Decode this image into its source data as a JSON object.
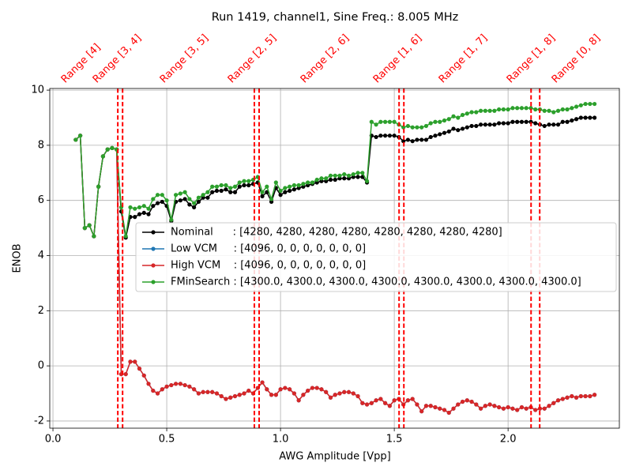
{
  "chart_data": {
    "type": "line",
    "title": "Run 1419, channel1, Sine Freq.: 8.005 MHz",
    "xlabel": "AWG Amplitude [Vpp]",
    "ylabel": "ENOB",
    "xlim": [
      -0.014,
      2.489
    ],
    "ylim": [
      -2.26,
      10.06
    ],
    "xticks": [
      {
        "value": 0,
        "label": "0.0"
      },
      0.5,
      {
        "value": 1,
        "label": "1.0"
      },
      1.5,
      {
        "value": 2,
        "label": "2.0"
      }
    ],
    "yticks": [
      -2,
      0,
      2,
      4,
      6,
      8,
      10
    ],
    "grid": true,
    "legend": "center right",
    "vlines": {
      "color": "#ff0000",
      "x": [
        0.285,
        0.306,
        0.885,
        0.906,
        1.521,
        1.542,
        2.101,
        2.139
      ]
    },
    "annotations": [
      "Range [4]",
      "Range [3, 4]",
      "Range [3, 5]",
      "Range [2, 5]",
      "Range [2, 6]",
      "Range [1, 6]",
      "Range [1, 7]",
      "Range [1, 8]",
      "Range [0, 8]"
    ],
    "x": [
      0.1,
      0.12,
      0.14,
      0.16,
      0.18,
      0.2,
      0.22,
      0.24,
      0.26,
      0.28,
      0.3,
      0.32,
      0.34,
      0.36,
      0.38,
      0.4,
      0.42,
      0.44,
      0.46,
      0.48,
      0.5,
      0.52,
      0.54,
      0.56,
      0.58,
      0.6,
      0.62,
      0.64,
      0.66,
      0.68,
      0.7,
      0.72,
      0.74,
      0.76,
      0.78,
      0.8,
      0.82,
      0.84,
      0.86,
      0.88,
      0.9,
      0.92,
      0.94,
      0.96,
      0.98,
      1.0,
      1.02,
      1.04,
      1.06,
      1.08,
      1.1,
      1.12,
      1.14,
      1.16,
      1.18,
      1.2,
      1.22,
      1.24,
      1.26,
      1.28,
      1.3,
      1.32,
      1.34,
      1.36,
      1.38,
      1.4,
      1.42,
      1.44,
      1.46,
      1.48,
      1.5,
      1.52,
      1.54,
      1.56,
      1.58,
      1.6,
      1.62,
      1.64,
      1.66,
      1.68,
      1.7,
      1.72,
      1.74,
      1.76,
      1.78,
      1.8,
      1.82,
      1.84,
      1.86,
      1.88,
      1.9,
      1.92,
      1.94,
      1.96,
      1.98,
      2.0,
      2.02,
      2.04,
      2.06,
      2.08,
      2.1,
      2.12,
      2.14,
      2.16,
      2.18,
      2.2,
      2.22,
      2.24,
      2.26,
      2.28,
      2.3,
      2.32,
      2.34,
      2.36,
      2.38
    ],
    "series": [
      {
        "name": "Nominal      : [4280, 4280, 4280, 4280, 4280, 4280, 4280, 4280]",
        "color": "#000000",
        "values": [
          8.2,
          8.35,
          5.0,
          5.1,
          4.7,
          6.5,
          7.6,
          7.85,
          7.9,
          7.85,
          5.6,
          4.65,
          5.4,
          5.4,
          5.5,
          5.55,
          5.5,
          5.8,
          5.9,
          5.95,
          5.8,
          5.25,
          5.95,
          6.0,
          6.05,
          5.85,
          5.75,
          5.95,
          6.1,
          6.1,
          6.3,
          6.35,
          6.35,
          6.4,
          6.3,
          6.3,
          6.5,
          6.55,
          6.55,
          6.6,
          6.65,
          6.15,
          6.3,
          5.95,
          6.45,
          6.2,
          6.3,
          6.35,
          6.4,
          6.45,
          6.5,
          6.55,
          6.6,
          6.65,
          6.7,
          6.7,
          6.75,
          6.75,
          6.8,
          6.8,
          6.8,
          6.85,
          6.85,
          6.85,
          6.65,
          8.35,
          8.3,
          8.35,
          8.35,
          8.35,
          8.35,
          8.3,
          8.15,
          8.2,
          8.15,
          8.2,
          8.2,
          8.2,
          8.3,
          8.35,
          8.4,
          8.45,
          8.5,
          8.6,
          8.55,
          8.6,
          8.65,
          8.7,
          8.7,
          8.75,
          8.75,
          8.75,
          8.75,
          8.8,
          8.8,
          8.8,
          8.85,
          8.85,
          8.85,
          8.85,
          8.85,
          8.8,
          8.75,
          8.7,
          8.75,
          8.75,
          8.75,
          8.85,
          8.85,
          8.9,
          8.95,
          9.0,
          9.0,
          9.0,
          9.0
        ]
      },
      {
        "name": "Low VCM     : [4096, 0, 0, 0, 0, 0, 0, 0]",
        "color": "#1f77b4",
        "values": [
          8.2,
          8.35,
          5.0,
          5.1,
          4.7,
          6.5,
          7.6,
          7.85,
          7.9,
          7.85,
          -0.3,
          -0.3,
          0.15,
          0.15,
          -0.1,
          -0.35,
          -0.65,
          -0.9,
          -1.0,
          -0.85,
          -0.75,
          -0.7,
          -0.65,
          -0.65,
          -0.7,
          -0.75,
          -0.85,
          -1.0,
          -0.95,
          -0.95,
          -0.95,
          -1.0,
          -1.1,
          -1.2,
          -1.15,
          -1.1,
          -1.05,
          -1.0,
          -0.9,
          -1.0,
          -0.8,
          -0.6,
          -0.85,
          -1.05,
          -1.05,
          -0.85,
          -0.8,
          -0.85,
          -1.0,
          -1.25,
          -1.05,
          -0.9,
          -0.8,
          -0.8,
          -0.85,
          -0.95,
          -1.15,
          -1.05,
          -1.0,
          -0.95,
          -0.95,
          -1.0,
          -1.1,
          -1.35,
          -1.4,
          -1.35,
          -1.25,
          -1.2,
          -1.35,
          -1.45,
          -1.25,
          -1.2,
          -1.4,
          -1.25,
          -1.2,
          -1.4,
          -1.65,
          -1.45,
          -1.45,
          -1.5,
          -1.55,
          -1.6,
          -1.7,
          -1.55,
          -1.4,
          -1.3,
          -1.25,
          -1.3,
          -1.4,
          -1.55,
          -1.45,
          -1.4,
          -1.45,
          -1.5,
          -1.55,
          -1.5,
          -1.55,
          -1.6,
          -1.5,
          -1.55,
          -1.5,
          -1.6,
          -1.55,
          -1.55,
          -1.45,
          -1.35,
          -1.25,
          -1.2,
          -1.15,
          -1.1,
          -1.15,
          -1.1,
          -1.1,
          -1.1,
          -1.05
        ]
      },
      {
        "name": "High VCM    : [4096, 0, 0, 0, 0, 0, 0, 0]",
        "color": "#d62728",
        "values": [
          8.2,
          8.35,
          5.0,
          5.1,
          4.7,
          6.5,
          7.6,
          7.85,
          7.9,
          7.85,
          -0.3,
          -0.3,
          0.15,
          0.15,
          -0.1,
          -0.35,
          -0.65,
          -0.9,
          -1.0,
          -0.85,
          -0.75,
          -0.7,
          -0.65,
          -0.65,
          -0.7,
          -0.75,
          -0.85,
          -1.0,
          -0.95,
          -0.95,
          -0.95,
          -1.0,
          -1.1,
          -1.2,
          -1.15,
          -1.1,
          -1.05,
          -1.0,
          -0.9,
          -1.0,
          -0.8,
          -0.6,
          -0.85,
          -1.05,
          -1.05,
          -0.85,
          -0.8,
          -0.85,
          -1.0,
          -1.25,
          -1.05,
          -0.9,
          -0.8,
          -0.8,
          -0.85,
          -0.95,
          -1.15,
          -1.05,
          -1.0,
          -0.95,
          -0.95,
          -1.0,
          -1.1,
          -1.35,
          -1.4,
          -1.35,
          -1.25,
          -1.2,
          -1.35,
          -1.45,
          -1.25,
          -1.2,
          -1.4,
          -1.25,
          -1.2,
          -1.4,
          -1.65,
          -1.45,
          -1.45,
          -1.5,
          -1.55,
          -1.6,
          -1.7,
          -1.55,
          -1.4,
          -1.3,
          -1.25,
          -1.3,
          -1.4,
          -1.55,
          -1.45,
          -1.4,
          -1.45,
          -1.5,
          -1.55,
          -1.5,
          -1.55,
          -1.6,
          -1.5,
          -1.55,
          -1.5,
          -1.6,
          -1.55,
          -1.55,
          -1.45,
          -1.35,
          -1.25,
          -1.2,
          -1.15,
          -1.1,
          -1.15,
          -1.1,
          -1.1,
          -1.1,
          -1.05
        ]
      },
      {
        "name": "FMinSearch : [4300.0, 4300.0, 4300.0, 4300.0, 4300.0, 4300.0, 4300.0, 4300.0]",
        "color": "#2ca02c",
        "values": [
          8.2,
          8.35,
          5.0,
          5.1,
          4.7,
          6.5,
          7.6,
          7.85,
          7.9,
          7.85,
          5.75,
          4.7,
          5.75,
          5.7,
          5.75,
          5.8,
          5.7,
          6.05,
          6.2,
          6.2,
          6.0,
          5.3,
          6.2,
          6.25,
          6.3,
          6.05,
          5.9,
          6.1,
          6.2,
          6.3,
          6.5,
          6.5,
          6.55,
          6.55,
          6.45,
          6.5,
          6.65,
          6.7,
          6.7,
          6.75,
          6.85,
          6.3,
          6.5,
          6.05,
          6.65,
          6.35,
          6.45,
          6.5,
          6.55,
          6.55,
          6.6,
          6.65,
          6.65,
          6.75,
          6.8,
          6.8,
          6.9,
          6.9,
          6.9,
          6.95,
          6.9,
          6.95,
          7.0,
          7.0,
          6.7,
          8.85,
          8.75,
          8.85,
          8.85,
          8.85,
          8.85,
          8.75,
          8.65,
          8.7,
          8.65,
          8.65,
          8.65,
          8.7,
          8.8,
          8.85,
          8.85,
          8.9,
          8.95,
          9.05,
          9.0,
          9.1,
          9.15,
          9.2,
          9.2,
          9.25,
          9.25,
          9.25,
          9.25,
          9.3,
          9.3,
          9.3,
          9.35,
          9.35,
          9.35,
          9.35,
          9.35,
          9.3,
          9.3,
          9.25,
          9.25,
          9.2,
          9.25,
          9.3,
          9.3,
          9.35,
          9.4,
          9.45,
          9.5,
          9.5,
          9.5
        ]
      }
    ]
  }
}
